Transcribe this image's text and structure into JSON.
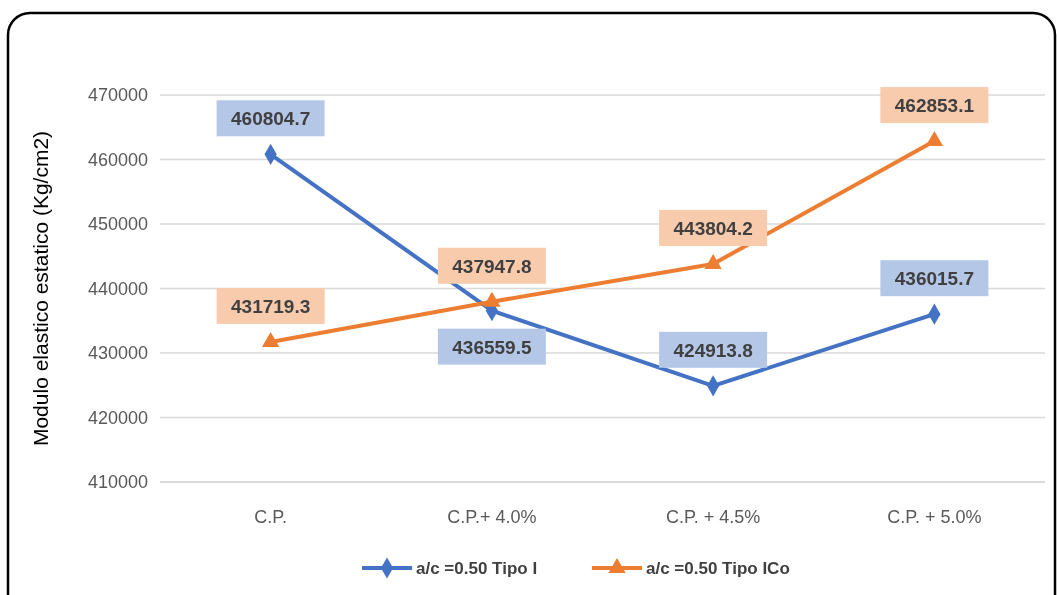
{
  "chart_data": {
    "type": "line",
    "ylabel": "Modulo elastico estatico (Kg/cm2)",
    "categories": [
      "C.P.",
      "C.P.+ 4.0%",
      "C.P. + 4.5%",
      "C.P. + 5.0%"
    ],
    "series": [
      {
        "name": "a/c =0.50 Tipo I",
        "color": "#4472c4",
        "marker": "diamond",
        "values": [
          460804.7,
          436559.5,
          424913.8,
          436015.7
        ]
      },
      {
        "name": "a/c =0.50 Tipo ICo",
        "color": "#ed7d31",
        "marker": "triangle",
        "values": [
          431719.3,
          437947.8,
          443804.2,
          462853.1
        ]
      }
    ],
    "ylim": [
      410000,
      470000
    ],
    "yticks": [
      410000,
      420000,
      430000,
      440000,
      450000,
      460000,
      470000
    ],
    "grid": "y",
    "legend": "bottom",
    "data_labels": true
  }
}
